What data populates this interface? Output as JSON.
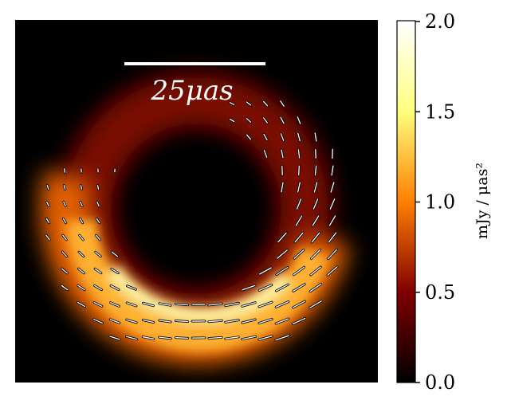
{
  "image": {
    "scale_bar_label": "25μas",
    "background_color": "#000000",
    "colormap": "afmhot",
    "colorbar": {
      "label": "mJy / μas²",
      "ticks": [
        "0.0",
        "0.5",
        "1.0",
        "1.5",
        "2.0"
      ],
      "tick_values": [
        0.0,
        0.5,
        1.0,
        1.5,
        2.0
      ],
      "range": [
        0.0,
        2.0
      ]
    }
  }
}
